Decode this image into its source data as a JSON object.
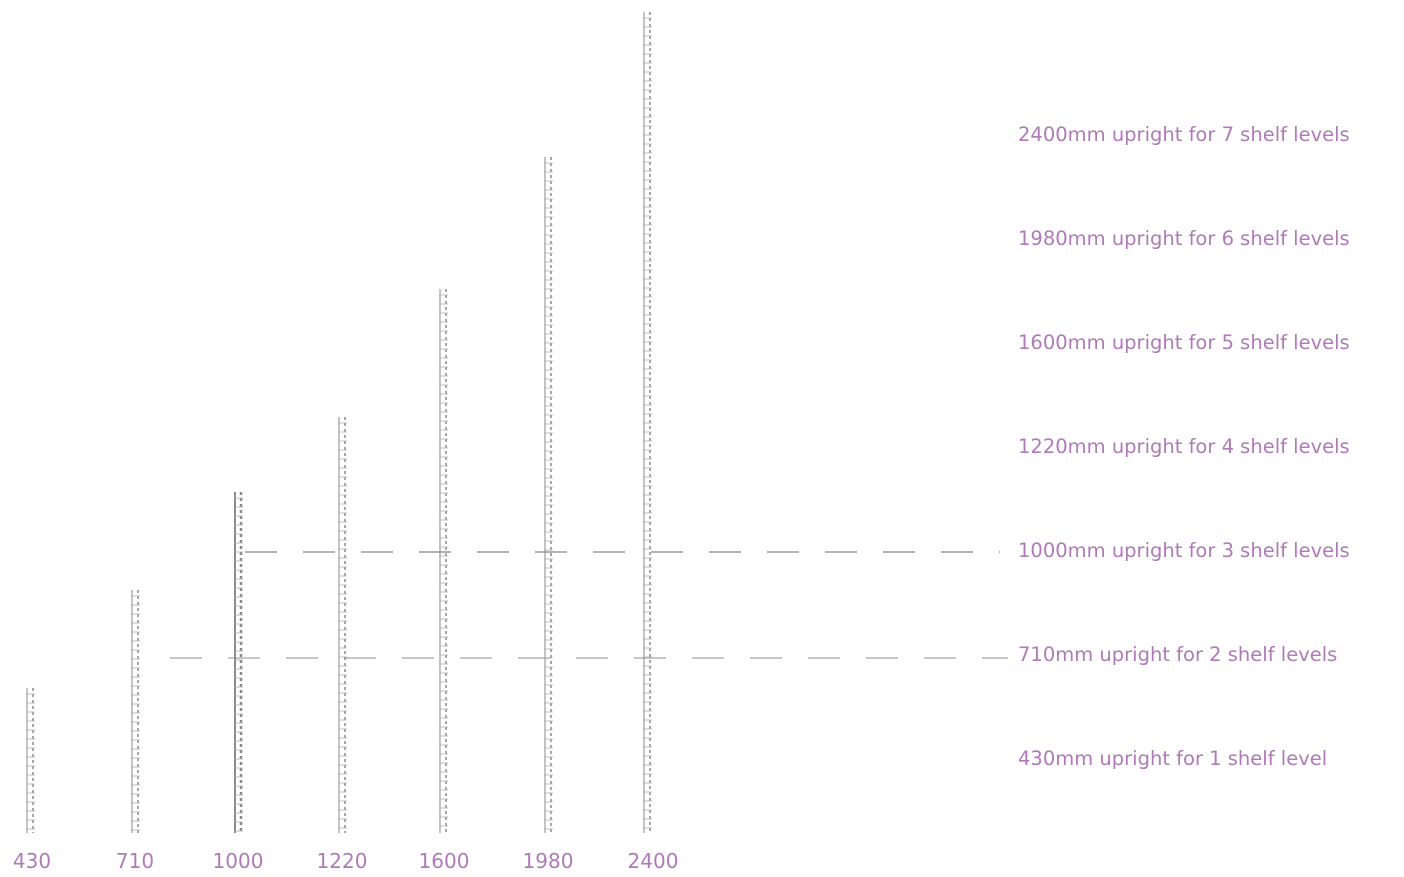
{
  "diagram": {
    "accent_color": "#b07ab8",
    "line_color": "#8a8a8a",
    "uprights": [
      {
        "height": "430",
        "caption": "430mm upright for 1 shelf level"
      },
      {
        "height": "710",
        "caption": "710mm upright for 2 shelf levels"
      },
      {
        "height": "1000",
        "caption": "1000mm upright for 3 shelf levels"
      },
      {
        "height": "1220",
        "caption": "1220mm upright for 4 shelf levels"
      },
      {
        "height": "1600",
        "caption": "1600mm upright for 5 shelf levels"
      },
      {
        "height": "1980",
        "caption": "1980mm upright for 6 shelf levels"
      },
      {
        "height": "2400",
        "caption": "2400mm upright for 7 shelf levels"
      }
    ]
  }
}
